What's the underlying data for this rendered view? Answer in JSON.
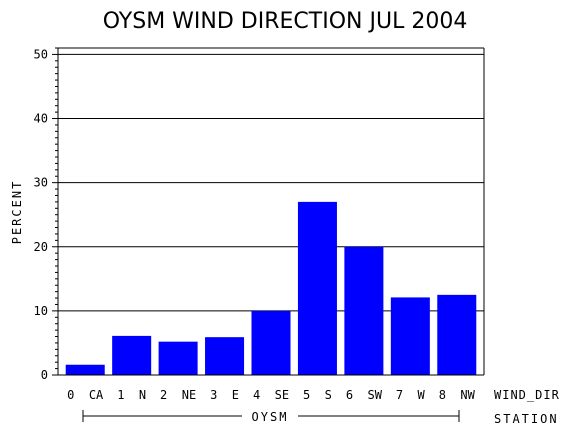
{
  "chart_data": {
    "type": "bar",
    "title": "OYSM WIND DIRECTION JUL 2004",
    "ylabel": "PERCENT",
    "xlabel": "WIND_DIR",
    "group_axis_label": "STATION",
    "group_label": "OYSM",
    "categories": [
      "0 CA",
      "1 N",
      "2 NE",
      "3 E",
      "4 SE",
      "5 S",
      "6 SW",
      "7 W",
      "8 NW"
    ],
    "values": [
      1.6,
      6.1,
      5.2,
      5.9,
      10.0,
      27.0,
      20.0,
      12.1,
      12.5
    ],
    "ylim": [
      0,
      51
    ],
    "yticks": [
      0,
      10,
      20,
      30,
      40,
      50
    ],
    "grid": true,
    "bar_color": "#0000ff"
  }
}
